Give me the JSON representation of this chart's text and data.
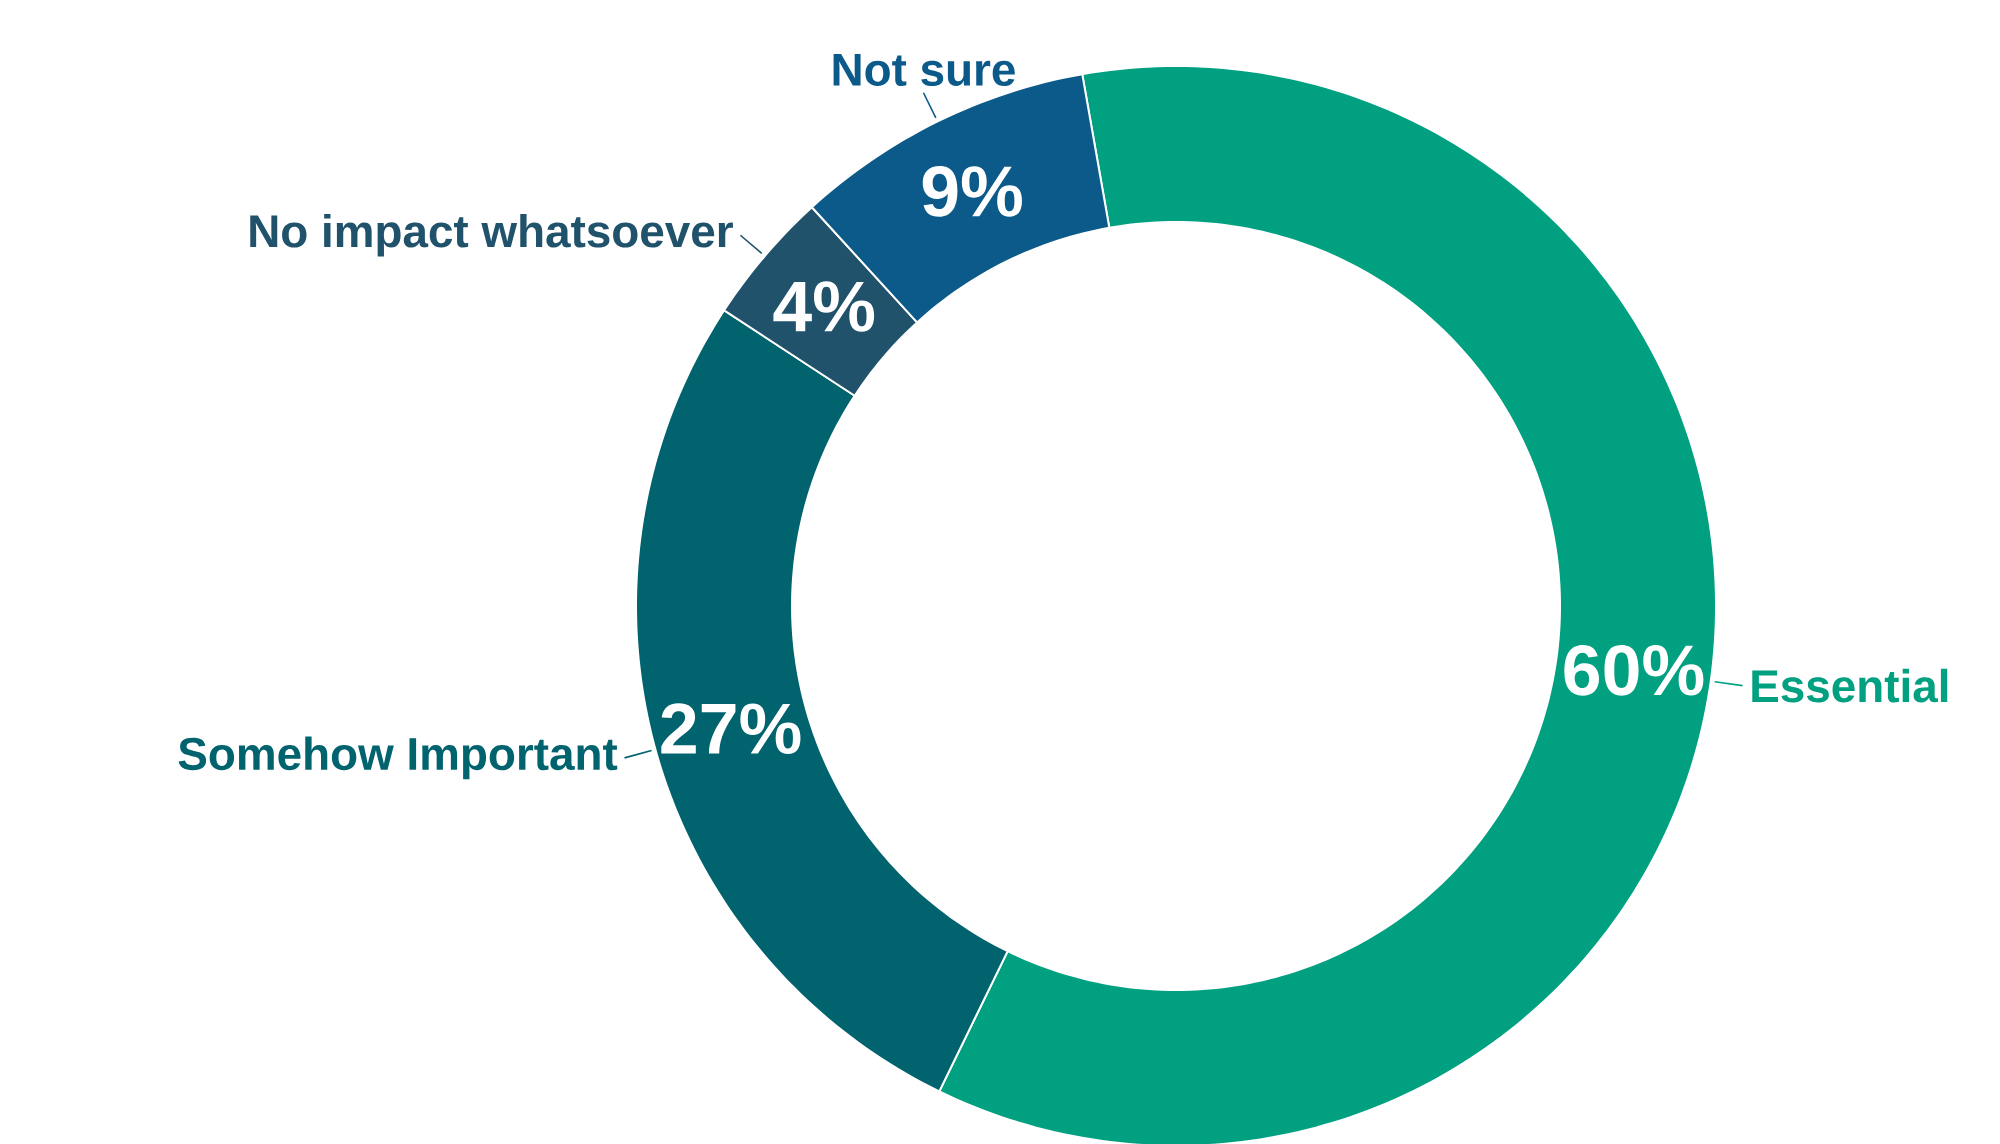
{
  "chart_data": {
    "type": "donut",
    "categories": [
      "Essential",
      "Somehow Important",
      "No impact whatsoever",
      "Not sure"
    ],
    "values": [
      60,
      27,
      4,
      9
    ],
    "value_labels": [
      "60%",
      "27%",
      "4%",
      "9%"
    ],
    "colors": [
      "#00a080",
      "#00636e",
      "#21526b",
      "#0b5a89"
    ]
  }
}
